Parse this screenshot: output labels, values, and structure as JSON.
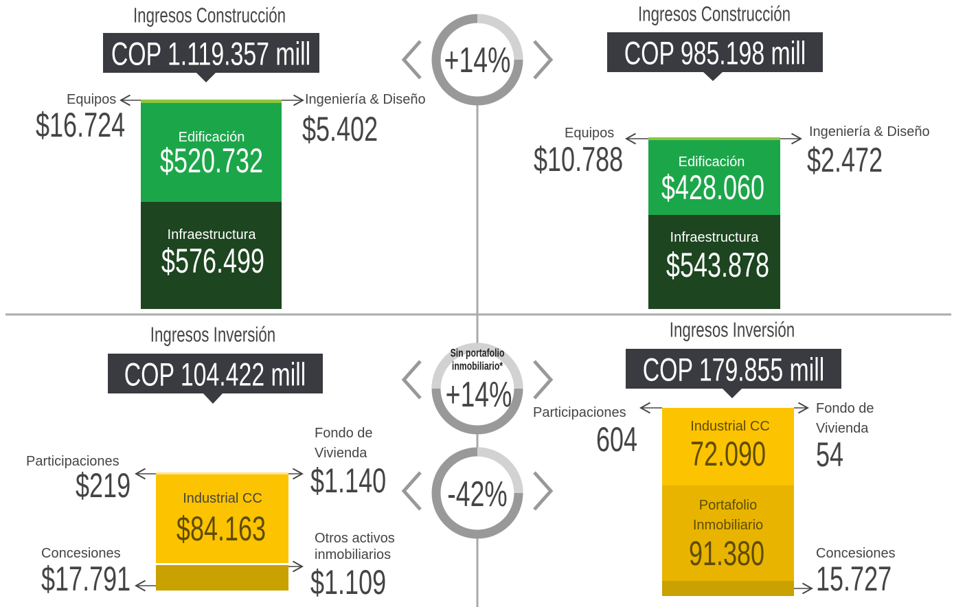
{
  "panels": [
    {
      "title": "Ingresos Construcción",
      "total": "COP 1.119.357 mill",
      "items": [
        {
          "label": "Equipos",
          "value": "$16.724"
        },
        {
          "label": "Ingeniería & Diseño",
          "value": "$5.402"
        },
        {
          "label": "Edificación",
          "value": "$520.732"
        },
        {
          "label": "Infraestructura",
          "value": "$576.499"
        }
      ]
    },
    {
      "title": "Ingresos Construcción",
      "total": "COP 985.198 mill",
      "items": [
        {
          "label": "Equipos",
          "value": "$10.788"
        },
        {
          "label": "Ingeniería & Diseño",
          "value": "$2.472"
        },
        {
          "label": "Edificación",
          "value": "$428.060"
        },
        {
          "label": "Infraestructura",
          "value": "$543.878"
        }
      ]
    },
    {
      "title": "Ingresos Inversión",
      "total": "COP 104.422 mill",
      "items": [
        {
          "label": "Participaciones",
          "value": "$219"
        },
        {
          "label": [
            "Fondo de",
            "Vivienda"
          ],
          "value": "$1.140"
        },
        {
          "label": "Industrial CC",
          "value": "$84.163"
        },
        {
          "label": "Concesiones",
          "value": "$17.791"
        },
        {
          "label": [
            "Otros activos",
            "inmobiliarios"
          ],
          "value": "$1.109"
        }
      ]
    },
    {
      "title": "Ingresos Inversión",
      "total": "COP 179.855 mill",
      "items": [
        {
          "label": "Participaciones",
          "value": "604"
        },
        {
          "label": [
            "Fondo de",
            "Vivienda"
          ],
          "value": "54"
        },
        {
          "label": "Industrial CC",
          "value": "72.090"
        },
        {
          "label": [
            "Portafolio",
            "Inmobiliario"
          ],
          "value": "91.380"
        },
        {
          "label": "Concesiones",
          "value": "15.727"
        }
      ]
    }
  ],
  "badges": [
    {
      "text": "+14%"
    },
    {
      "note": [
        "Sin portafolio",
        "inmobiliario*"
      ],
      "text": "+14%"
    },
    {
      "text": "-42%"
    }
  ]
}
